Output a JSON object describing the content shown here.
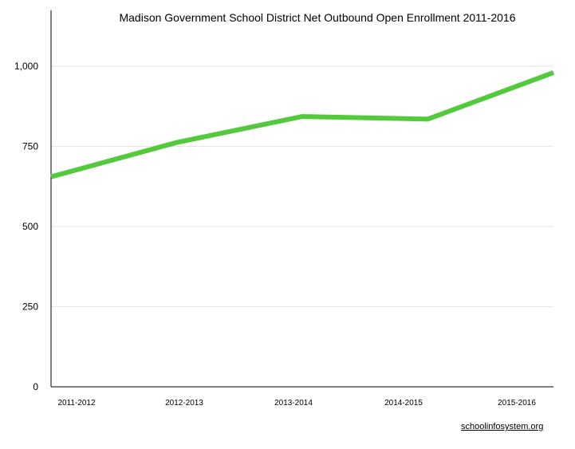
{
  "chart_data": {
    "type": "line",
    "title": "Madison Government School District Net Outbound Open Enrollment 2011-2016",
    "xlabel": "",
    "ylabel": "",
    "categories": [
      "2011-2012",
      "2012-2013",
      "2013-2014",
      "2014-2015",
      "2015-2016"
    ],
    "series": [
      {
        "values": [
          655,
          762,
          843,
          835,
          980
        ]
      }
    ],
    "ylim": [
      0,
      1000
    ],
    "yticks": [
      0,
      250,
      500,
      750,
      1000
    ],
    "ytick_labels": [
      "0",
      "250",
      "500",
      "750",
      "1,000"
    ],
    "grid": true,
    "line_color": "#53c93c",
    "grid_color": "#e6e6e6",
    "axis_color": "#000000"
  },
  "source_label": "schoolinfosystem.org"
}
